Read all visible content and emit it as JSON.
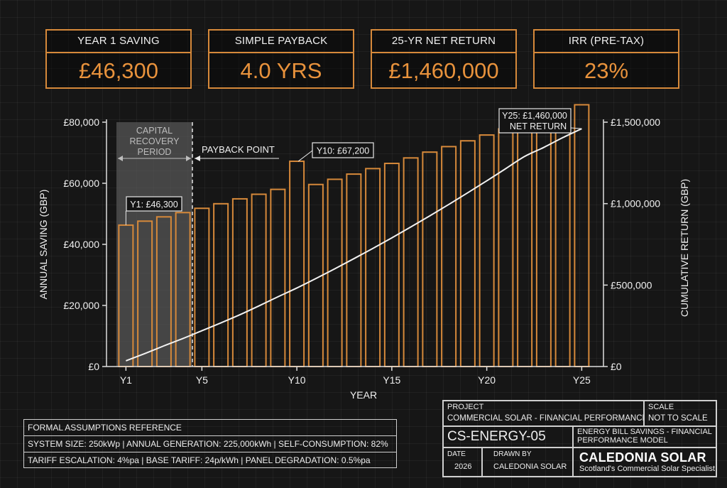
{
  "kpis": [
    {
      "label": "YEAR 1 SAVING",
      "value": "£46,300"
    },
    {
      "label": "SIMPLE PAYBACK",
      "value": "4.0 YRS"
    },
    {
      "label": "25-YR NET RETURN",
      "value": "£1,460,000"
    },
    {
      "label": "IRR (PRE-TAX)",
      "value": "23%"
    }
  ],
  "chart_data": {
    "type": "bar",
    "xlabel": "YEAR",
    "ylabel_left": "ANNUAL SAVING (GBP)",
    "ylabel_right": "CUMULATIVE RETURN (GBP)",
    "ylim_left": [
      0,
      80000
    ],
    "ylim_right": [
      0,
      1500000
    ],
    "y_ticks_left": [
      {
        "value": 0,
        "label": "£0"
      },
      {
        "value": 20000,
        "label": "£20,000"
      },
      {
        "value": 40000,
        "label": "£40,000"
      },
      {
        "value": 60000,
        "label": "£60,000"
      },
      {
        "value": 80000,
        "label": "£80,000"
      }
    ],
    "y_ticks_right": [
      {
        "value": 0,
        "label": "£0"
      },
      {
        "value": 500000,
        "label": "£500,000"
      },
      {
        "value": 1000000,
        "label": "£1,000,000"
      },
      {
        "value": 1500000,
        "label": "£1,500,000"
      }
    ],
    "x_ticks": [
      {
        "year": 1,
        "label": "Y1"
      },
      {
        "year": 5,
        "label": "Y5"
      },
      {
        "year": 10,
        "label": "Y10"
      },
      {
        "year": 15,
        "label": "Y15"
      },
      {
        "year": 20,
        "label": "Y20"
      },
      {
        "year": 25,
        "label": "Y25"
      }
    ],
    "years": [
      1,
      2,
      3,
      4,
      5,
      6,
      7,
      8,
      9,
      10,
      11,
      12,
      13,
      14,
      15,
      16,
      17,
      18,
      19,
      20,
      21,
      22,
      23,
      24,
      25
    ],
    "series": [
      {
        "type": "bar",
        "axis": "left",
        "values": [
          46300,
          47600,
          49000,
          50400,
          51800,
          53300,
          54900,
          56400,
          58000,
          67200,
          59600,
          61300,
          63000,
          64800,
          66500,
          68300,
          70200,
          72000,
          73900,
          75800,
          77800,
          79700,
          81700,
          83700,
          85700
        ]
      },
      {
        "type": "line",
        "axis": "right",
        "values": [
          35000,
          80000,
          127000,
          172000,
          220000,
          268000,
          318000,
          372000,
          428000,
          482000,
          540000,
          600000,
          662000,
          725000,
          790000,
          857000,
          925000,
          995000,
          1067000,
          1140000,
          1215000,
          1290000,
          1345000,
          1405000,
          1460000
        ]
      }
    ],
    "shaded_region": {
      "from_year": 0.5,
      "to_year": 4.0,
      "label": "CAPITAL RECOVERY PERIOD"
    },
    "annotations": {
      "payback": "PAYBACK POINT",
      "y1": "Y1: £46,300",
      "y10": "Y10: £67,200",
      "y25_line1": "Y25: £1,460,000",
      "y25_line2": "NET RETURN"
    },
    "colors": {
      "bar": "#d6893a",
      "line": "#f2f2f2",
      "axis": "#dddddd",
      "shade": "#5a5a5a"
    }
  },
  "assumptions": {
    "title": "FORMAL ASSUMPTIONS REFERENCE",
    "line1": "SYSTEM SIZE: 250kWp  |  ANNUAL GENERATION: 225,000kWh  |  SELF-CONSUMPTION: 82%",
    "line2": "TARIFF ESCALATION: 4%pa  |  BASE TARIFF: 24p/kWh  |  PANEL DEGRADATION: 0.5%pa"
  },
  "title_block": {
    "project_label": "PROJECT",
    "project_value": "COMMERCIAL SOLAR - FINANCIAL PERFORMANCE",
    "scale_label": "SCALE",
    "scale_value": "NOT TO SCALE",
    "drawing_no": "CS-ENERGY-05",
    "drawing_title": "ENERGY BILL SAVINGS - FINANCIAL PERFORMANCE MODEL",
    "date_label": "DATE",
    "date_value": "2026",
    "drawn_label": "DRAWN BY",
    "drawn_value": "CALEDONIA SOLAR",
    "brand": "CALEDONIA SOLAR",
    "tagline": "Scotland's Commercial Solar Specialist"
  }
}
